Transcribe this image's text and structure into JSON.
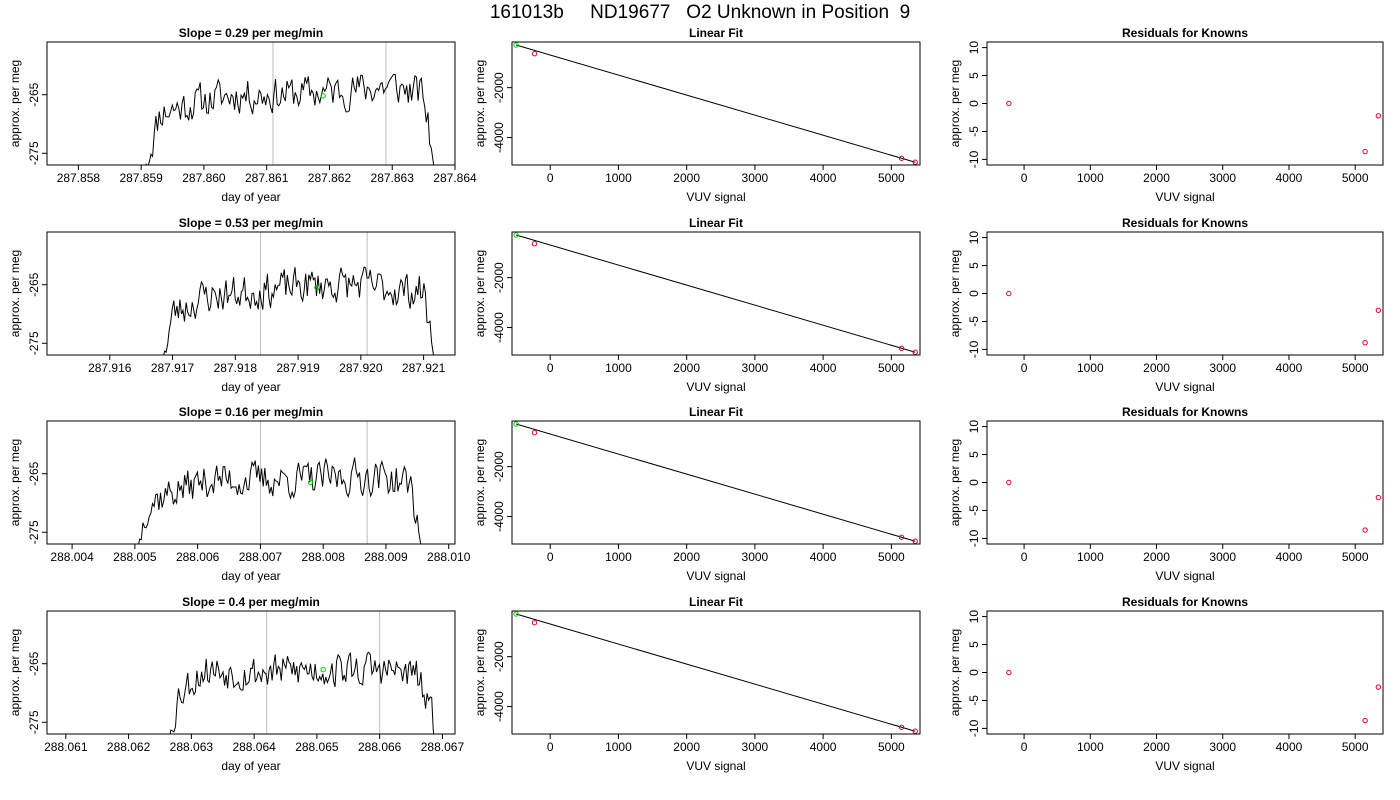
{
  "page_title": "161013b     ND19677   O2 Unknown in Position  9",
  "colors": {
    "line": "#000000",
    "vline": "#bebebe",
    "green": "#00cc00",
    "red": "#e0002a"
  },
  "chart_data": [
    {
      "title": "Slope =  0.29  per meg/min",
      "type": "line",
      "xlabel": "day of year",
      "ylabel": "approx. per meg",
      "xlim": [
        287.8575,
        287.864
      ],
      "ylim": [
        -277,
        -256
      ],
      "xticks": [
        287.858,
        287.859,
        287.86,
        287.861,
        287.862,
        287.863,
        287.864
      ],
      "xtick_labels": [
        "287.858",
        "287.859",
        "287.860",
        "287.861",
        "287.862",
        "287.863",
        "287.864"
      ],
      "yticks": [
        -275,
        -265
      ],
      "ytick_labels": [
        "-275",
        "-265"
      ],
      "vlines": [
        287.8611,
        287.8629
      ],
      "green_point": [
        287.8619,
        -265.2
      ],
      "trace": {
        "x_start": 287.859,
        "x_end": 287.8637,
        "seed": 11,
        "points": [
          [
            287.859,
            -280
          ],
          [
            287.8593,
            -268
          ],
          [
            287.86,
            -266
          ],
          [
            287.8605,
            -265
          ],
          [
            287.8611,
            -265
          ],
          [
            287.862,
            -264.5
          ],
          [
            287.8625,
            -264
          ],
          [
            287.863,
            -263.5
          ],
          [
            287.8635,
            -265
          ],
          [
            287.8637,
            -280
          ]
        ]
      }
    },
    {
      "title": "Linear Fit",
      "type": "scatter",
      "xlabel": "VUV signal",
      "ylabel": "approx. per meg",
      "xlim": [
        -560,
        5420
      ],
      "ylim": [
        -5100,
        -170
      ],
      "xticks": [
        0,
        1000,
        2000,
        3000,
        4000,
        5000
      ],
      "xtick_labels": [
        "0",
        "1000",
        "2000",
        "3000",
        "4000",
        "5000"
      ],
      "yticks": [
        -4000,
        -2000
      ],
      "ytick_labels": [
        "-4000",
        "-2000"
      ],
      "line": [
        [
          -500,
          -290
        ],
        [
          5350,
          -4990
        ]
      ],
      "green_points": [
        [
          -500,
          -290
        ]
      ],
      "red_points": [
        [
          -230,
          -640
        ],
        [
          5150,
          -4830
        ],
        [
          5350,
          -4990
        ]
      ]
    },
    {
      "title": "Residuals for Knowns",
      "type": "scatter",
      "xlabel": "VUV signal",
      "ylabel": "approx. per meg",
      "xlim": [
        -560,
        5420
      ],
      "ylim": [
        -11,
        11
      ],
      "xticks": [
        0,
        1000,
        2000,
        3000,
        4000,
        5000
      ],
      "xtick_labels": [
        "0",
        "1000",
        "2000",
        "3000",
        "4000",
        "5000"
      ],
      "yticks": [
        -10,
        -5,
        0,
        5,
        10
      ],
      "ytick_labels": [
        "-10",
        "-5",
        "0",
        "5",
        "10"
      ],
      "red_points": [
        [
          -230,
          0.0
        ],
        [
          5150,
          -8.6
        ],
        [
          5350,
          -2.2
        ]
      ]
    },
    {
      "title": "Slope =  0.53  per meg/min",
      "type": "line",
      "xlabel": "day of year",
      "ylabel": "approx. per meg",
      "xlim": [
        287.915,
        287.9215
      ],
      "ylim": [
        -277,
        -256
      ],
      "xticks": [
        287.916,
        287.917,
        287.918,
        287.919,
        287.92,
        287.921
      ],
      "xtick_labels": [
        "287.916",
        "287.917",
        "287.918",
        "287.919",
        "287.920",
        "287.921"
      ],
      "yticks": [
        -275,
        -265
      ],
      "ytick_labels": [
        "-275",
        "-265"
      ],
      "vlines": [
        287.9184,
        287.9201
      ],
      "green_point": [
        287.9193,
        -265.5
      ],
      "trace": {
        "x_start": 287.9168,
        "x_end": 287.9212,
        "seed": 23,
        "points": [
          [
            287.9168,
            -280
          ],
          [
            287.917,
            -270
          ],
          [
            287.9175,
            -267
          ],
          [
            287.9184,
            -266
          ],
          [
            287.9192,
            -265
          ],
          [
            287.92,
            -265
          ],
          [
            287.9207,
            -266
          ],
          [
            287.921,
            -266
          ],
          [
            287.9212,
            -280
          ]
        ]
      }
    },
    {
      "title": "Linear Fit",
      "type": "scatter",
      "xlabel": "VUV signal",
      "ylabel": "approx. per meg",
      "xlim": [
        -560,
        5420
      ],
      "ylim": [
        -5100,
        -170
      ],
      "xticks": [
        0,
        1000,
        2000,
        3000,
        4000,
        5000
      ],
      "xtick_labels": [
        "0",
        "1000",
        "2000",
        "3000",
        "4000",
        "5000"
      ],
      "yticks": [
        -4000,
        -2000
      ],
      "ytick_labels": [
        "-4000",
        "-2000"
      ],
      "line": [
        [
          -500,
          -290
        ],
        [
          5350,
          -4990
        ]
      ],
      "green_points": [
        [
          -500,
          -290
        ]
      ],
      "red_points": [
        [
          -230,
          -640
        ],
        [
          5150,
          -4830
        ],
        [
          5350,
          -4990
        ]
      ]
    },
    {
      "title": "Residuals for Knowns",
      "type": "scatter",
      "xlabel": "VUV signal",
      "ylabel": "approx. per meg",
      "xlim": [
        -560,
        5420
      ],
      "ylim": [
        -11,
        11
      ],
      "xticks": [
        0,
        1000,
        2000,
        3000,
        4000,
        5000
      ],
      "xtick_labels": [
        "0",
        "1000",
        "2000",
        "3000",
        "4000",
        "5000"
      ],
      "yticks": [
        -10,
        -5,
        0,
        5,
        10
      ],
      "ytick_labels": [
        "-10",
        "-5",
        "0",
        "5",
        "10"
      ],
      "red_points": [
        [
          -230,
          0.0
        ],
        [
          5150,
          -8.8
        ],
        [
          5350,
          -3.0
        ]
      ]
    },
    {
      "title": "Slope =  0.16  per meg/min",
      "type": "line",
      "xlabel": "day of year",
      "ylabel": "approx. per meg",
      "xlim": [
        288.0036,
        288.0101
      ],
      "ylim": [
        -277,
        -256
      ],
      "xticks": [
        288.004,
        288.005,
        288.006,
        288.007,
        288.008,
        288.009,
        288.01
      ],
      "xtick_labels": [
        "288.004",
        "288.005",
        "288.006",
        "288.007",
        "288.008",
        "288.009",
        "288.010"
      ],
      "yticks": [
        -275,
        -265
      ],
      "ytick_labels": [
        "-275",
        "-265"
      ],
      "vlines": [
        288.007,
        288.0087
      ],
      "green_point": [
        288.0078,
        -266.5
      ],
      "trace": {
        "x_start": 288.005,
        "x_end": 288.0096,
        "seed": 37,
        "points": [
          [
            288.005,
            -280
          ],
          [
            288.0052,
            -270
          ],
          [
            288.0056,
            -268
          ],
          [
            288.0062,
            -266
          ],
          [
            288.007,
            -266
          ],
          [
            288.0078,
            -266
          ],
          [
            288.0085,
            -265.5
          ],
          [
            288.009,
            -265.5
          ],
          [
            288.0094,
            -267
          ],
          [
            288.0096,
            -280
          ]
        ]
      }
    },
    {
      "title": "Linear Fit",
      "type": "scatter",
      "xlabel": "VUV signal",
      "ylabel": "approx. per meg",
      "xlim": [
        -560,
        5420
      ],
      "ylim": [
        -5100,
        -170
      ],
      "xticks": [
        0,
        1000,
        2000,
        3000,
        4000,
        5000
      ],
      "xtick_labels": [
        "0",
        "1000",
        "2000",
        "3000",
        "4000",
        "5000"
      ],
      "yticks": [
        -4000,
        -2000
      ],
      "ytick_labels": [
        "-4000",
        "-2000"
      ],
      "line": [
        [
          -500,
          -290
        ],
        [
          5350,
          -4990
        ]
      ],
      "green_points": [
        [
          -500,
          -290
        ]
      ],
      "red_points": [
        [
          -230,
          -640
        ],
        [
          5150,
          -4830
        ],
        [
          5350,
          -4990
        ]
      ]
    },
    {
      "title": "Residuals for Knowns",
      "type": "scatter",
      "xlabel": "VUV signal",
      "ylabel": "approx. per meg",
      "xlim": [
        -560,
        5420
      ],
      "ylim": [
        -11,
        11
      ],
      "xticks": [
        0,
        1000,
        2000,
        3000,
        4000,
        5000
      ],
      "xtick_labels": [
        "0",
        "1000",
        "2000",
        "3000",
        "4000",
        "5000"
      ],
      "yticks": [
        -10,
        -5,
        0,
        5,
        10
      ],
      "ytick_labels": [
        "-10",
        "-5",
        "0",
        "5",
        "10"
      ],
      "red_points": [
        [
          -230,
          0.0
        ],
        [
          5150,
          -8.5
        ],
        [
          5350,
          -2.7
        ]
      ]
    },
    {
      "title": "Slope =  0.4  per meg/min",
      "type": "line",
      "xlabel": "day of year",
      "ylabel": "approx. per meg",
      "xlim": [
        288.0607,
        288.0672
      ],
      "ylim": [
        -277,
        -256
      ],
      "xticks": [
        288.061,
        288.062,
        288.063,
        288.064,
        288.065,
        288.066,
        288.067
      ],
      "xtick_labels": [
        "288.061",
        "288.062",
        "288.063",
        "288.064",
        "288.065",
        "288.066",
        "288.067"
      ],
      "yticks": [
        -275,
        -265
      ],
      "ytick_labels": [
        "-275",
        "-265"
      ],
      "vlines": [
        288.0642,
        288.066
      ],
      "green_point": [
        288.0651,
        -266.0
      ],
      "trace": {
        "x_start": 288.0626,
        "x_end": 288.067,
        "seed": 53,
        "points": [
          [
            288.0626,
            -280
          ],
          [
            288.0628,
            -270
          ],
          [
            288.0632,
            -266
          ],
          [
            288.064,
            -266.5
          ],
          [
            288.065,
            -266
          ],
          [
            288.066,
            -266
          ],
          [
            288.0666,
            -267
          ],
          [
            288.067,
            -280
          ]
        ]
      }
    },
    {
      "title": "Linear Fit",
      "type": "scatter",
      "xlabel": "VUV signal",
      "ylabel": "approx. per meg",
      "xlim": [
        -560,
        5420
      ],
      "ylim": [
        -5100,
        -170
      ],
      "xticks": [
        0,
        1000,
        2000,
        3000,
        4000,
        5000
      ],
      "xtick_labels": [
        "0",
        "1000",
        "2000",
        "3000",
        "4000",
        "5000"
      ],
      "yticks": [
        -4000,
        -2000
      ],
      "ytick_labels": [
        "-4000",
        "-2000"
      ],
      "line": [
        [
          -500,
          -290
        ],
        [
          5350,
          -4990
        ]
      ],
      "green_points": [
        [
          -500,
          -290
        ]
      ],
      "red_points": [
        [
          -230,
          -640
        ],
        [
          5150,
          -4830
        ],
        [
          5350,
          -4990
        ]
      ]
    },
    {
      "title": "Residuals for Knowns",
      "type": "scatter",
      "xlabel": "VUV signal",
      "ylabel": "approx. per meg",
      "xlim": [
        -560,
        5420
      ],
      "ylim": [
        -11,
        11
      ],
      "xticks": [
        0,
        1000,
        2000,
        3000,
        4000,
        5000
      ],
      "xtick_labels": [
        "0",
        "1000",
        "2000",
        "3000",
        "4000",
        "5000"
      ],
      "yticks": [
        -10,
        -5,
        0,
        5,
        10
      ],
      "ytick_labels": [
        "-10",
        "-5",
        "0",
        "5",
        "10"
      ],
      "red_points": [
        [
          -230,
          0.0
        ],
        [
          5150,
          -8.6
        ],
        [
          5350,
          -2.6
        ]
      ]
    }
  ]
}
